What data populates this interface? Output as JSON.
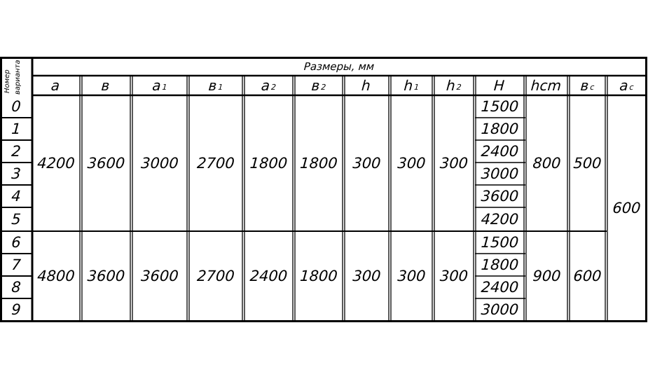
{
  "table": {
    "variant_label_line1": "Номер",
    "variant_label_line2": "варианта",
    "title": "Размеры, мм",
    "columns": [
      {
        "main": "a",
        "sub": ""
      },
      {
        "main": "в",
        "sub": ""
      },
      {
        "main": "a",
        "sub": "1"
      },
      {
        "main": "в",
        "sub": "1"
      },
      {
        "main": "a",
        "sub": "2"
      },
      {
        "main": "в",
        "sub": "2"
      },
      {
        "main": "h",
        "sub": ""
      },
      {
        "main": "h",
        "sub": "1"
      },
      {
        "main": "h",
        "sub": "2"
      },
      {
        "main": "H",
        "sub": ""
      },
      {
        "main": "hcm",
        "sub": ""
      },
      {
        "main": "в",
        "sub": "c"
      },
      {
        "main": "a",
        "sub": "c"
      }
    ],
    "variants": [
      "0",
      "1",
      "2",
      "3",
      "4",
      "5",
      "6",
      "7",
      "8",
      "9"
    ],
    "group1": {
      "a": "4200",
      "b": "3600",
      "a1": "3000",
      "b1": "2700",
      "a2": "1800",
      "b2": "1800",
      "h": "300",
      "h1": "300",
      "h2": "300",
      "hcm": "800",
      "bc": "500"
    },
    "group2": {
      "a": "4800",
      "b": "3600",
      "a1": "3600",
      "b1": "2700",
      "a2": "2400",
      "b2": "1800",
      "h": "300",
      "h1": "300",
      "h2": "300",
      "hcm": "900",
      "bc": "600"
    },
    "H_values": [
      "1500",
      "1800",
      "2400",
      "3000",
      "3600",
      "4200",
      "1500",
      "1800",
      "2400",
      "3000"
    ],
    "ac": "600"
  }
}
